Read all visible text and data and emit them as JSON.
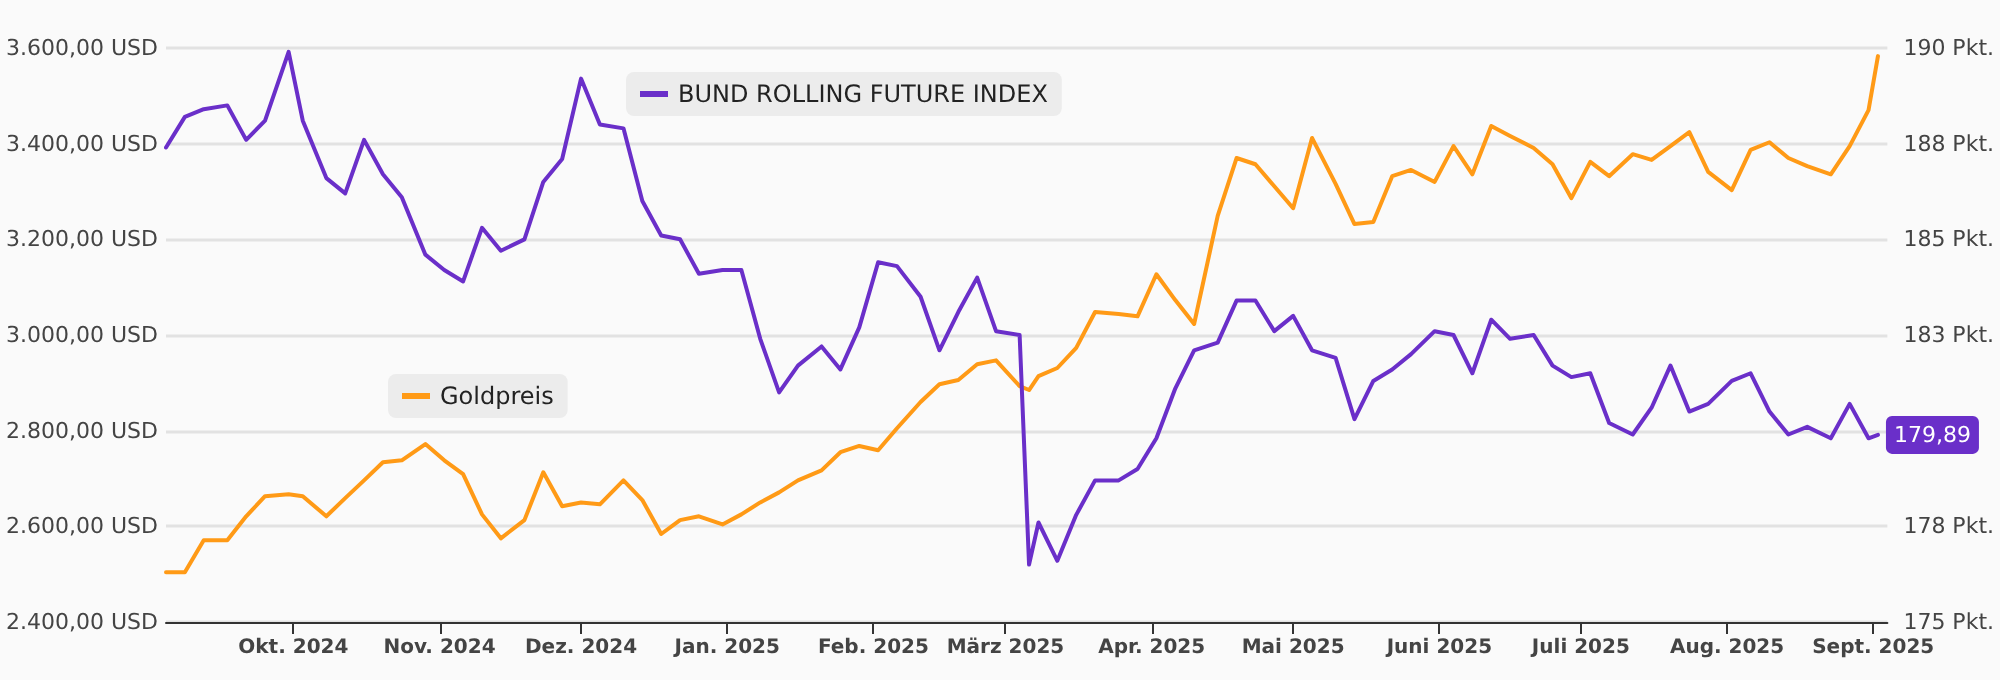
{
  "chart_data": {
    "type": "line",
    "x": [
      "2024-09-04",
      "2024-09-08",
      "2024-09-12",
      "2024-09-17",
      "2024-09-21",
      "2024-09-25",
      "2024-09-30",
      "2024-10-03",
      "2024-10-08",
      "2024-10-12",
      "2024-10-16",
      "2024-10-20",
      "2024-10-24",
      "2024-10-29",
      "2024-11-02",
      "2024-11-06",
      "2024-11-10",
      "2024-11-14",
      "2024-11-19",
      "2024-11-23",
      "2024-11-27",
      "2024-12-01",
      "2024-12-05",
      "2024-12-10",
      "2024-12-14",
      "2024-12-18",
      "2024-12-22",
      "2024-12-26",
      "2024-12-31",
      "2025-01-04",
      "2025-01-08",
      "2025-01-12",
      "2025-01-16",
      "2025-01-21",
      "2025-01-25",
      "2025-01-29",
      "2025-02-02",
      "2025-02-06",
      "2025-02-11",
      "2025-02-15",
      "2025-02-19",
      "2025-02-23",
      "2025-02-27",
      "2025-03-04",
      "2025-03-06",
      "2025-03-08",
      "2025-03-12",
      "2025-03-16",
      "2025-03-20",
      "2025-03-25",
      "2025-03-29",
      "2025-04-02",
      "2025-04-06",
      "2025-04-10",
      "2025-04-15",
      "2025-04-19",
      "2025-04-23",
      "2025-04-27",
      "2025-05-01",
      "2025-05-05",
      "2025-05-10",
      "2025-05-14",
      "2025-05-18",
      "2025-05-22",
      "2025-05-26",
      "2025-05-31",
      "2025-06-04",
      "2025-06-08",
      "2025-06-12",
      "2025-06-16",
      "2025-06-21",
      "2025-06-25",
      "2025-06-29",
      "2025-07-03",
      "2025-07-07",
      "2025-07-12",
      "2025-07-16",
      "2025-07-20",
      "2025-07-24",
      "2025-07-28",
      "2025-08-02",
      "2025-08-06",
      "2025-08-10",
      "2025-08-14",
      "2025-08-18",
      "2025-08-23",
      "2025-08-27",
      "2025-08-31",
      "2025-09-02"
    ],
    "series": [
      {
        "name": "BUND ROLLING FUTURE INDEX",
        "color": "#6a2fc9",
        "axis": "y2",
        "values": [
          187.4,
          188.2,
          188.4,
          188.5,
          187.6,
          188.1,
          189.9,
          188.1,
          186.6,
          186.2,
          187.6,
          186.7,
          186.1,
          184.6,
          184.2,
          183.9,
          185.3,
          184.7,
          185.0,
          186.5,
          187.1,
          189.2,
          188.0,
          187.9,
          186.0,
          185.1,
          185.0,
          184.1,
          184.2,
          184.2,
          182.4,
          181.0,
          181.7,
          182.2,
          181.6,
          182.7,
          184.4,
          184.3,
          183.5,
          182.1,
          183.1,
          184.0,
          182.6,
          182.5,
          176.5,
          177.6,
          176.6,
          177.8,
          178.7,
          178.7,
          179.0,
          179.8,
          181.1,
          182.1,
          182.3,
          183.4,
          183.4,
          182.6,
          183.0,
          182.1,
          181.9,
          180.3,
          181.3,
          181.6,
          182.0,
          182.6,
          182.5,
          181.5,
          182.9,
          182.4,
          182.5,
          181.7,
          181.4,
          181.5,
          180.2,
          179.9,
          180.6,
          181.7,
          180.5,
          180.7,
          181.3,
          181.5,
          180.5,
          179.9,
          180.1,
          179.8,
          180.7,
          179.8,
          179.89
        ],
        "value_labels": [
          null,
          null,
          null,
          null,
          null,
          null,
          null,
          null,
          null,
          null,
          null,
          null,
          null,
          null,
          null,
          null,
          null,
          null,
          null,
          null,
          null,
          null,
          null,
          null,
          null,
          null,
          null,
          null,
          null,
          null,
          null,
          null,
          null,
          null,
          null,
          null,
          null,
          null,
          null,
          null,
          null,
          null,
          null,
          null,
          null,
          null,
          null,
          null,
          null,
          null,
          null,
          null,
          null,
          null,
          null,
          null,
          null,
          null,
          null,
          null,
          null,
          null,
          null,
          null,
          null,
          null,
          null,
          null,
          null,
          null,
          null,
          null,
          null,
          null,
          null,
          null,
          null,
          null,
          null,
          null,
          null,
          null,
          null,
          null,
          null,
          null,
          null,
          null,
          "179,89"
        ]
      },
      {
        "name": "Goldpreis",
        "color": "#ff9a16",
        "values": [
          2504,
          2504,
          2571,
          2571,
          2621,
          2663,
          2667,
          2663,
          2621,
          2659,
          2696,
          2734,
          2738,
          2772,
          2738,
          2709,
          2625,
          2575,
          2613,
          2713,
          2642,
          2650,
          2646,
          2696,
          2655,
          2584,
          2613,
          2621,
          2604,
          2625,
          2650,
          2671,
          2696,
          2717,
          2755,
          2768,
          2759,
          2805,
          2860,
          2897,
          2906,
          2939,
          2947,
          2893,
          2885,
          2914,
          2931,
          2973,
          3048,
          3044,
          3039,
          3127,
          3073,
          3023,
          3249,
          3370,
          3357,
          3311,
          3265,
          3412,
          3316,
          3232,
          3236,
          3332,
          3345,
          3320,
          3395,
          3336,
          3437,
          3416,
          3391,
          3357,
          3286,
          3362,
          3332,
          3378,
          3366,
          3395,
          3424,
          3341,
          3303,
          3387,
          3403,
          3370,
          3353,
          3336,
          3395,
          3470,
          3583
        ]
      }
    ],
    "xlim": [
      "2024-09-04",
      "2025-09-04"
    ],
    "xticks": [
      {
        "value": "2024-10-01",
        "label": "Okt. 2024"
      },
      {
        "value": "2024-11-01",
        "label": "Nov. 2024"
      },
      {
        "value": "2024-12-01",
        "label": "Dez. 2024"
      },
      {
        "value": "2025-01-01",
        "label": "Jan. 2025"
      },
      {
        "value": "2025-02-01",
        "label": "Feb. 2025"
      },
      {
        "value": "2025-03-01",
        "label": "März 2025"
      },
      {
        "value": "2025-04-01",
        "label": "Apr. 2025"
      },
      {
        "value": "2025-05-01",
        "label": "Mai 2025"
      },
      {
        "value": "2025-06-01",
        "label": "Juni 2025"
      },
      {
        "value": "2025-07-01",
        "label": "Juli 2025"
      },
      {
        "value": "2025-08-01",
        "label": "Aug. 2025"
      },
      {
        "value": "2025-09-01",
        "label": "Sept. 2025"
      }
    ],
    "ylim": [
      2400,
      3600
    ],
    "yticks": [
      {
        "value": 2400,
        "label": "2.400,00 USD"
      },
      {
        "value": 2600,
        "label": "2.600,00 USD"
      },
      {
        "value": 2800,
        "label": "2.800,00 USD"
      },
      {
        "value": 3000,
        "label": "3.000,00 USD"
      },
      {
        "value": 3200,
        "label": "3.200,00 USD"
      },
      {
        "value": 3400,
        "label": "3.400,00 USD"
      },
      {
        "value": 3600,
        "label": "3.600,00 USD"
      }
    ],
    "y2lim": [
      175,
      190
    ],
    "y2ticks": [
      {
        "value": 175,
        "label": "175 Pkt."
      },
      {
        "value": 177.5,
        "label": "178 Pkt."
      },
      {
        "value": 180,
        "label": null
      },
      {
        "value": 182.5,
        "label": "183 Pkt."
      },
      {
        "value": 185,
        "label": "185 Pkt."
      },
      {
        "value": 187.5,
        "label": "188 Pkt."
      },
      {
        "value": 190,
        "label": "190 Pkt."
      }
    ],
    "grid": "y",
    "legend": "top"
  }
}
